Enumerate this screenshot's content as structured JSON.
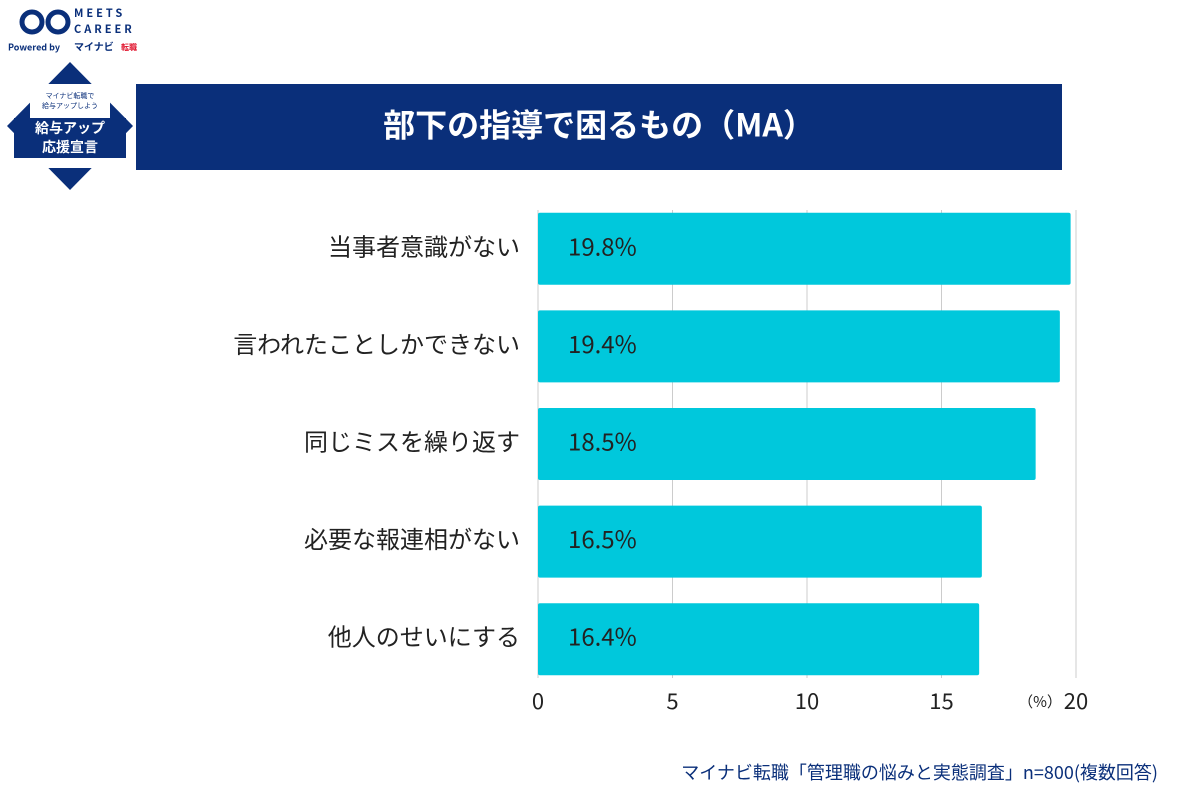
{
  "logo": {
    "name_top": "MEETS",
    "name_bottom": "CAREER",
    "powered": "Powered by",
    "brand": "マイナビ",
    "brand_sub": "転職"
  },
  "badge": {
    "line1": "マイナビ転職で",
    "line2": "給与アップしよう",
    "main1": "給与アップ",
    "main2": "応援宣言"
  },
  "chart_data": {
    "type": "barh",
    "title": "部下の指導で困るもの（MA）",
    "categories": [
      "当事者意識がない",
      "言われたことしかできない",
      "同じミスを繰り返す",
      "必要な報連相がない",
      "他人のせいにする"
    ],
    "values": [
      19.8,
      19.4,
      18.5,
      16.5,
      16.4
    ],
    "value_labels": [
      "19.8%",
      "19.4%",
      "18.5%",
      "16.5%",
      "16.4%"
    ],
    "color": "#00c8dc",
    "xlim": [
      0,
      20
    ],
    "xticks": [
      0,
      5,
      10,
      15,
      20
    ],
    "grid": true,
    "x_unit": "（%）",
    "source": "マイナビ転職「管理職の悩みと実態調査」n=800(複数回答)"
  }
}
